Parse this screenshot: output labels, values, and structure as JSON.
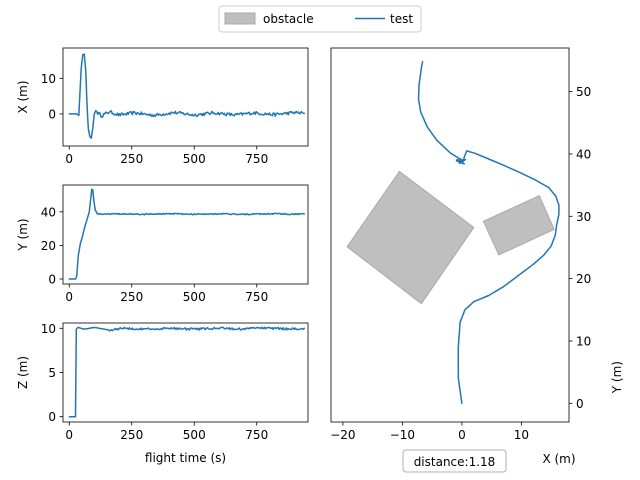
{
  "legend": {
    "items": [
      {
        "label": "obstacle",
        "kind": "patch",
        "color": "#bfbfbf"
      },
      {
        "label": "test",
        "kind": "line",
        "color": "#1f77b4"
      }
    ]
  },
  "annotation": {
    "distance_text": "distance:1.18"
  },
  "chart_data": [
    {
      "type": "line",
      "panel": "x-vs-time",
      "ylabel": "X (m)",
      "xlabel": "",
      "xlim": [
        -25,
        955
      ],
      "ylim": [
        -9,
        18.5
      ],
      "xticks": [
        0,
        250,
        500,
        750
      ],
      "yticks": [
        0,
        10
      ],
      "series": [
        {
          "color": "#1f77b4",
          "noise": 0.45,
          "points": [
            [
              0,
              0
            ],
            [
              30,
              0
            ],
            [
              38,
              -0.4
            ],
            [
              42,
              5
            ],
            [
              48,
              13
            ],
            [
              54,
              16.6
            ],
            [
              60,
              16.8
            ],
            [
              66,
              12
            ],
            [
              70,
              4
            ],
            [
              76,
              -4
            ],
            [
              82,
              -6.3
            ],
            [
              88,
              -6.8
            ],
            [
              94,
              -4
            ],
            [
              100,
              0
            ],
            [
              106,
              0.9
            ],
            [
              114,
              0.3
            ],
            [
              130,
              -0.5
            ],
            [
              160,
              0.6
            ],
            [
              200,
              -0.3
            ],
            [
              260,
              0.3
            ],
            [
              340,
              -0.4
            ],
            [
              420,
              0.4
            ],
            [
              500,
              -0.3
            ],
            [
              580,
              0.3
            ],
            [
              660,
              -0.3
            ],
            [
              740,
              0.3
            ],
            [
              820,
              -0.2
            ],
            [
              900,
              0.4
            ],
            [
              940,
              0.2
            ]
          ]
        }
      ]
    },
    {
      "type": "line",
      "panel": "y-vs-time",
      "ylabel": "Y (m)",
      "xlabel": "",
      "xlim": [
        -25,
        955
      ],
      "ylim": [
        -3,
        56
      ],
      "xticks": [
        0,
        250,
        500,
        750
      ],
      "yticks": [
        0,
        20,
        40
      ],
      "series": [
        {
          "color": "#1f77b4",
          "noise": 0.35,
          "points": [
            [
              0,
              0
            ],
            [
              25,
              0
            ],
            [
              30,
              2
            ],
            [
              36,
              14
            ],
            [
              44,
              21
            ],
            [
              52,
              25
            ],
            [
              62,
              31
            ],
            [
              72,
              36
            ],
            [
              80,
              40
            ],
            [
              86,
              48
            ],
            [
              90,
              53.5
            ],
            [
              94,
              53
            ],
            [
              98,
              47
            ],
            [
              104,
              41
            ],
            [
              112,
              39
            ],
            [
              130,
              38.6
            ],
            [
              200,
              38.9
            ],
            [
              300,
              38.5
            ],
            [
              400,
              38.9
            ],
            [
              500,
              38.6
            ],
            [
              600,
              38.8
            ],
            [
              700,
              38.5
            ],
            [
              800,
              38.9
            ],
            [
              900,
              38.6
            ],
            [
              940,
              38.8
            ]
          ]
        }
      ]
    },
    {
      "type": "line",
      "panel": "z-vs-time",
      "ylabel": "Z (m)",
      "xlabel": "flight time (s)",
      "xlim": [
        -25,
        955
      ],
      "ylim": [
        -0.6,
        10.6
      ],
      "xticks": [
        0,
        250,
        500,
        750
      ],
      "yticks": [
        0,
        5,
        10
      ],
      "series": [
        {
          "color": "#1f77b4",
          "noise": 0.12,
          "points": [
            [
              0,
              0
            ],
            [
              25,
              0
            ],
            [
              28,
              9.9
            ],
            [
              35,
              10.1
            ],
            [
              60,
              9.9
            ],
            [
              100,
              10.1
            ],
            [
              160,
              9.8
            ],
            [
              220,
              10.0
            ],
            [
              300,
              9.9
            ],
            [
              400,
              10.0
            ],
            [
              500,
              9.9
            ],
            [
              600,
              10.0
            ],
            [
              700,
              9.9
            ],
            [
              750,
              10.1
            ],
            [
              800,
              10.0
            ],
            [
              900,
              9.9
            ],
            [
              940,
              10.0
            ]
          ]
        }
      ]
    },
    {
      "type": "line",
      "panel": "xy-trajectory",
      "xlabel": "X (m)",
      "ylabel": "Y (m)",
      "ylabel_side": "right",
      "xlim": [
        -22,
        18
      ],
      "ylim": [
        -3,
        57
      ],
      "xticks": [
        -20,
        -10,
        0,
        10
      ],
      "yticks": [
        0,
        10,
        20,
        30,
        40,
        50
      ],
      "obstacles": [
        {
          "color": "#bfbfbf",
          "corners": [
            [
              -10.5,
              37.2
            ],
            [
              2,
              28.2
            ],
            [
              -6.8,
              16.0
            ],
            [
              -19.3,
              25.1
            ]
          ]
        },
        {
          "color": "#bfbfbf",
          "corners": [
            [
              3.6,
              29.2
            ],
            [
              13,
              33.3
            ],
            [
              15.5,
              27.9
            ],
            [
              6.2,
              23.8
            ]
          ]
        }
      ],
      "series": [
        {
          "color": "#1f77b4",
          "noise": 0,
          "points": [
            [
              0,
              0
            ],
            [
              -0.6,
              4
            ],
            [
              -0.6,
              9
            ],
            [
              -0.3,
              13
            ],
            [
              0.5,
              15
            ],
            [
              2,
              16.3
            ],
            [
              4.5,
              17.3
            ],
            [
              7,
              18.7
            ],
            [
              9.5,
              20.5
            ],
            [
              12,
              22.3
            ],
            [
              13.8,
              23.8
            ],
            [
              15,
              25.2
            ],
            [
              15.7,
              27
            ],
            [
              15.9,
              28.5
            ],
            [
              16.3,
              30.3
            ],
            [
              16.3,
              31.8
            ],
            [
              15.8,
              33.2
            ],
            [
              14.6,
              34.6
            ],
            [
              12.4,
              35.8
            ],
            [
              9.8,
              37
            ],
            [
              7,
              38.2
            ],
            [
              4.5,
              39.2
            ],
            [
              2.2,
              40.1
            ],
            [
              0.8,
              40.5
            ],
            [
              0.4,
              39.5
            ],
            [
              0.2,
              38.8
            ],
            [
              -0.8,
              39.1
            ],
            [
              0.4,
              38.4
            ],
            [
              -0.9,
              38.9
            ],
            [
              0.6,
              39.1
            ],
            [
              -0.4,
              38.5
            ],
            [
              0.3,
              38.9
            ],
            [
              -0.5,
              39.3
            ],
            [
              -2,
              40.2
            ],
            [
              -4.2,
              42.2
            ],
            [
              -5.8,
              44.3
            ],
            [
              -6.9,
              46.7
            ],
            [
              -7.3,
              48.8
            ],
            [
              -7.2,
              51.2
            ],
            [
              -6.8,
              53.8
            ],
            [
              -6.6,
              54.8
            ]
          ]
        }
      ]
    }
  ]
}
